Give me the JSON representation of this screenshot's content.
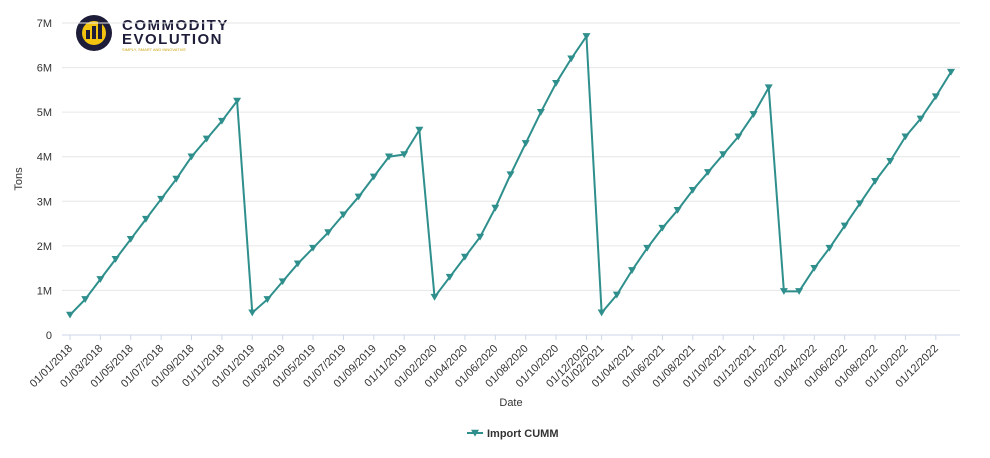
{
  "logo": {
    "line1": "COMMODITY",
    "line2": "EVOLUTION",
    "tagline": "SIMPLY, SMART AND INNOVATIVE"
  },
  "chart_data": {
    "type": "line",
    "x_label": "Date",
    "y_label": "Tons",
    "categories": [
      "01/01/2018",
      null,
      "01/03/2018",
      null,
      "01/05/2018",
      null,
      "01/07/2018",
      null,
      "01/09/2018",
      null,
      "01/11/2018",
      null,
      "01/01/2019",
      null,
      "01/03/2019",
      null,
      "01/05/2019",
      null,
      "01/07/2019",
      null,
      "01/09/2019",
      null,
      "01/11/2019",
      null,
      "01/02/2020",
      null,
      "01/04/2020",
      null,
      "01/06/2020",
      null,
      "01/08/2020",
      null,
      "01/10/2020",
      null,
      "01/12/2020",
      "01/02/2021",
      null,
      "01/04/2021",
      null,
      "01/06/2021",
      null,
      "01/08/2021",
      null,
      "01/10/2021",
      null,
      "01/12/2021",
      null,
      "01/02/2022",
      null,
      "01/04/2022",
      null,
      "01/06/2022",
      null,
      "01/08/2022",
      null,
      "01/10/2022",
      null,
      "01/12/2022",
      null
    ],
    "series": [
      {
        "name": "Import CUMM",
        "color": "#2e8f8c",
        "values": [
          450000,
          800000,
          1250000,
          1700000,
          2150000,
          2600000,
          3050000,
          3500000,
          4000000,
          4400000,
          4800000,
          5250000,
          500000,
          800000,
          1200000,
          1600000,
          1950000,
          2300000,
          2700000,
          3100000,
          3550000,
          4000000,
          4050000,
          4600000,
          850000,
          1300000,
          1750000,
          2200000,
          2850000,
          3600000,
          4300000,
          5000000,
          5650000,
          6200000,
          6700000,
          500000,
          900000,
          1450000,
          1950000,
          2400000,
          2800000,
          3250000,
          3650000,
          4050000,
          4450000,
          4950000,
          5550000,
          980000,
          980000,
          1500000,
          1950000,
          2450000,
          2950000,
          3450000,
          3900000,
          4450000,
          4850000,
          5350000,
          5900000
        ]
      }
    ],
    "ylim": [
      0,
      7000000
    ],
    "yticks": [
      0,
      {
        "value": 1000000,
        "label": "1M"
      },
      {
        "value": 2000000,
        "label": "2M"
      },
      {
        "value": 3000000,
        "label": "3M"
      },
      {
        "value": 4000000,
        "label": "4M"
      },
      {
        "value": 5000000,
        "label": "5M"
      },
      {
        "value": 6000000,
        "label": "6M"
      },
      {
        "value": 7000000,
        "label": "7M"
      }
    ],
    "grid": true
  }
}
